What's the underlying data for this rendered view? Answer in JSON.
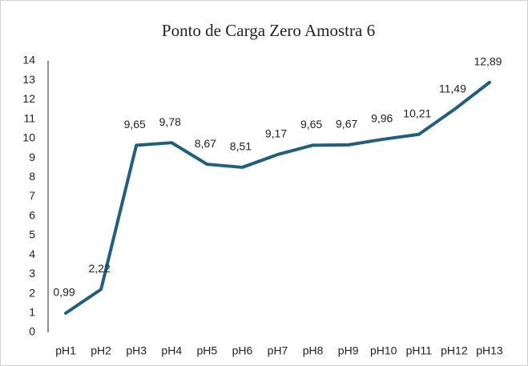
{
  "chart_data": {
    "type": "line",
    "title": "Ponto de Carga Zero Amostra 6",
    "categories": [
      "pH1",
      "pH2",
      "pH3",
      "pH4",
      "pH5",
      "pH6",
      "pH7",
      "pH8",
      "pH9",
      "pH10",
      "pH11",
      "pH12",
      "pH13"
    ],
    "values": [
      0.99,
      2.22,
      9.65,
      9.78,
      8.67,
      8.51,
      9.17,
      9.65,
      9.67,
      9.96,
      10.21,
      11.49,
      12.89
    ],
    "value_labels": [
      "0,99",
      "2,22",
      "9,65",
      "9,78",
      "8,67",
      "8,51",
      "9,17",
      "9,65",
      "9,67",
      "9,96",
      "10,21",
      "11,49",
      "12,89"
    ],
    "color": "#215f7d",
    "ylim": [
      0,
      14
    ],
    "yticks": [
      0,
      1,
      2,
      3,
      4,
      5,
      6,
      7,
      8,
      9,
      10,
      11,
      12,
      13,
      14
    ],
    "grid": false
  }
}
